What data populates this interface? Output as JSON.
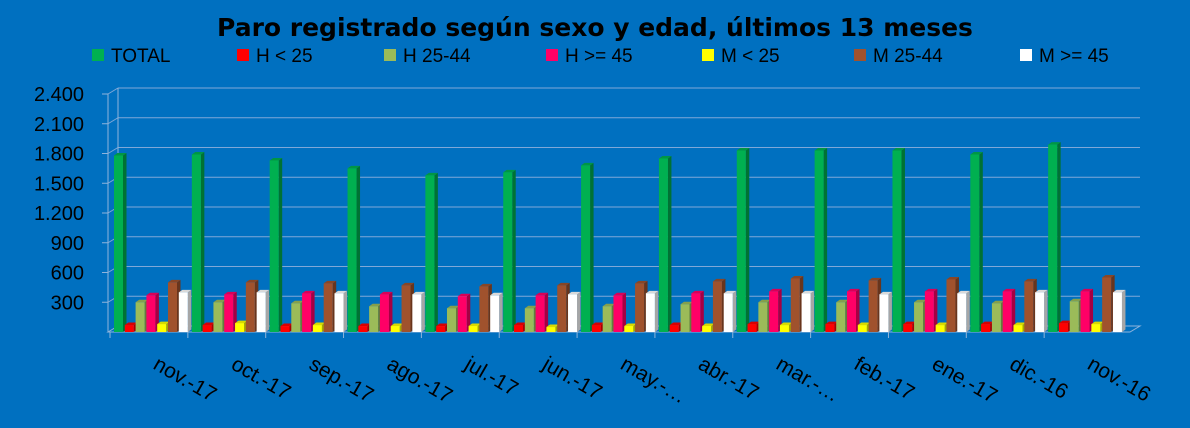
{
  "chart_data": {
    "type": "bar",
    "title": "Paro registrado según sexo y edad, últimos 13 meses",
    "xlabel": "",
    "ylabel": "",
    "ylim": [
      0,
      2400
    ],
    "yticks": [
      300,
      600,
      900,
      "1.200",
      "1.500",
      "1.800",
      "2.100",
      "2.400"
    ],
    "ytick_labels": [
      "300",
      "600",
      "900",
      "1.200",
      "1.500",
      "1.800",
      "2.100",
      "2.400"
    ],
    "grid": true,
    "legend_position": "top",
    "categories": [
      "nov.-17",
      "oct.-17",
      "sep.-17",
      "ago.-17",
      "jul.-17",
      "jun.-17",
      "may.-…",
      "abr.-17",
      "mar.-…",
      "feb.-17",
      "ene.-17",
      "dic.-16",
      "nov.-16"
    ],
    "series": [
      {
        "name": "TOTAL",
        "color": "#00B050",
        "values": [
          1780,
          1790,
          1730,
          1650,
          1580,
          1610,
          1680,
          1750,
          1830,
          1830,
          1830,
          1790,
          1890
        ]
      },
      {
        "name": "H < 25",
        "color": "#FF0000",
        "values": [
          70,
          70,
          60,
          60,
          60,
          70,
          70,
          70,
          80,
          80,
          80,
          80,
          90
        ]
      },
      {
        "name": "H 25-44",
        "color": "#9BBB59",
        "values": [
          300,
          300,
          290,
          260,
          240,
          240,
          260,
          280,
          300,
          300,
          300,
          290,
          310
        ]
      },
      {
        "name": "H >= 45",
        "color": "#FF0066",
        "values": [
          370,
          380,
          390,
          380,
          360,
          370,
          370,
          390,
          410,
          410,
          410,
          410,
          410
        ]
      },
      {
        "name": "M < 25",
        "color": "#FFFF00",
        "values": [
          80,
          90,
          70,
          60,
          60,
          50,
          60,
          60,
          70,
          70,
          70,
          70,
          80
        ]
      },
      {
        "name": "M 25-44",
        "color": "#A0522D",
        "values": [
          500,
          500,
          490,
          470,
          460,
          470,
          490,
          510,
          540,
          520,
          530,
          510,
          550
        ]
      },
      {
        "name": "M >= 45",
        "color": "#FFFFFF",
        "values": [
          400,
          400,
          390,
          380,
          370,
          380,
          390,
          390,
          390,
          380,
          390,
          400,
          400
        ]
      }
    ]
  }
}
